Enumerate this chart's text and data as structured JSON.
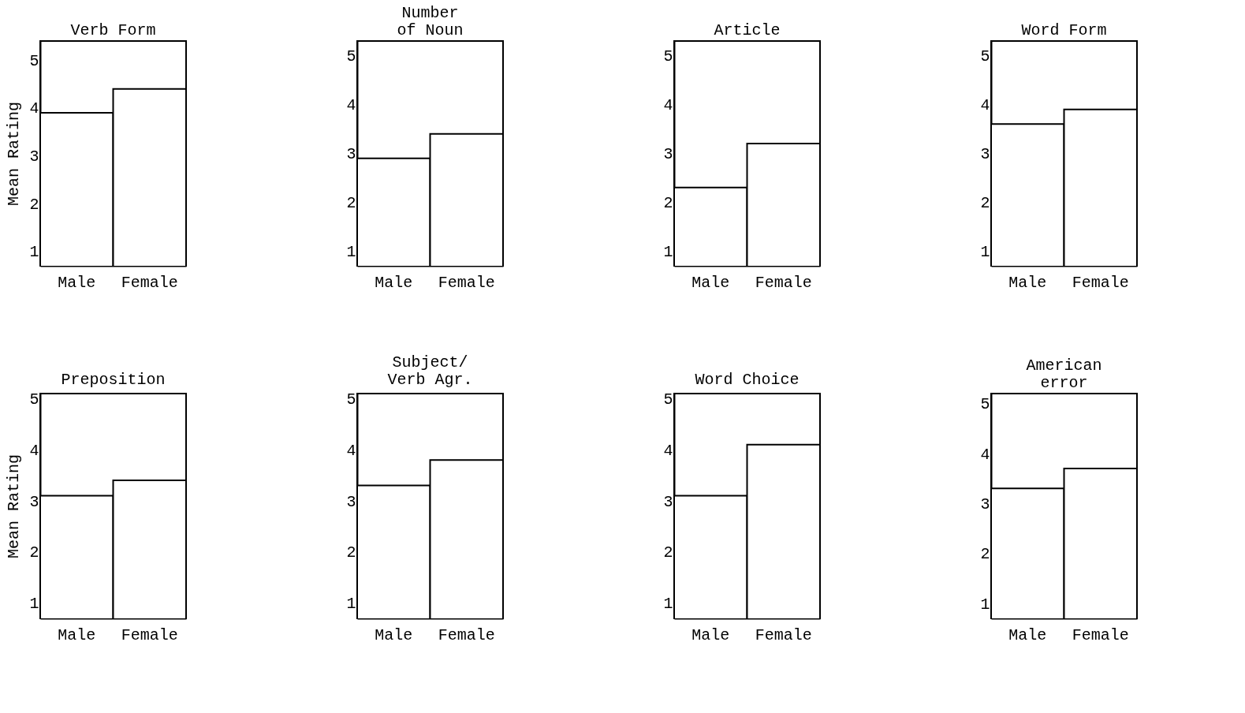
{
  "chart_data": [
    {
      "type": "bar",
      "title": "Verb Form",
      "ylabel": "Mean Rating",
      "categories": [
        "Male",
        "Female"
      ],
      "values": [
        3.9,
        4.4
      ],
      "color": "#ffffff",
      "ylim": [
        0.7,
        5.4
      ],
      "yticks": [
        1,
        2,
        3,
        4,
        5
      ],
      "grid": false
    },
    {
      "type": "bar",
      "title": "Number\nof Noun",
      "categories": [
        "Male",
        "Female"
      ],
      "values": [
        2.9,
        3.4
      ],
      "color": "#ffffff",
      "ylim": [
        0.7,
        5.3
      ],
      "yticks": [
        1,
        2,
        3,
        4,
        5
      ],
      "grid": false
    },
    {
      "type": "bar",
      "title": "Article",
      "categories": [
        "Male",
        "Female"
      ],
      "values": [
        2.3,
        3.2
      ],
      "color": "#ffffff",
      "ylim": [
        0.7,
        5.3
      ],
      "yticks": [
        1,
        2,
        3,
        4,
        5
      ],
      "grid": false
    },
    {
      "type": "bar",
      "title": "Word Form",
      "categories": [
        "Male",
        "Female"
      ],
      "values": [
        3.6,
        3.9
      ],
      "color": "#ffffff",
      "ylim": [
        0.7,
        5.3
      ],
      "yticks": [
        1,
        2,
        3,
        4,
        5
      ],
      "grid": false
    },
    {
      "type": "bar",
      "title": "Preposition",
      "ylabel": "Mean Rating",
      "categories": [
        "Male",
        "Female"
      ],
      "values": [
        3.1,
        3.4
      ],
      "color": "#ffffff",
      "ylim": [
        0.7,
        5.1
      ],
      "yticks": [
        1,
        2,
        3,
        4,
        5
      ],
      "grid": false
    },
    {
      "type": "bar",
      "title": "Subject/\nVerb Agr.",
      "categories": [
        "Male",
        "Female"
      ],
      "values": [
        3.3,
        3.8
      ],
      "color": "#ffffff",
      "ylim": [
        0.7,
        5.1
      ],
      "yticks": [
        1,
        2,
        3,
        4,
        5
      ],
      "grid": false
    },
    {
      "type": "bar",
      "title": "Word Choice",
      "categories": [
        "Male",
        "Female"
      ],
      "values": [
        3.1,
        4.1
      ],
      "color": "#ffffff",
      "ylim": [
        0.7,
        5.1
      ],
      "yticks": [
        1,
        2,
        3,
        4,
        5
      ],
      "grid": false
    },
    {
      "type": "bar",
      "title": "American\nerror",
      "categories": [
        "Male",
        "Female"
      ],
      "values": [
        3.3,
        3.7
      ],
      "color": "#ffffff",
      "ylim": [
        0.7,
        5.2
      ],
      "yticks": [
        1,
        2,
        3,
        4,
        5
      ],
      "grid": false
    }
  ]
}
